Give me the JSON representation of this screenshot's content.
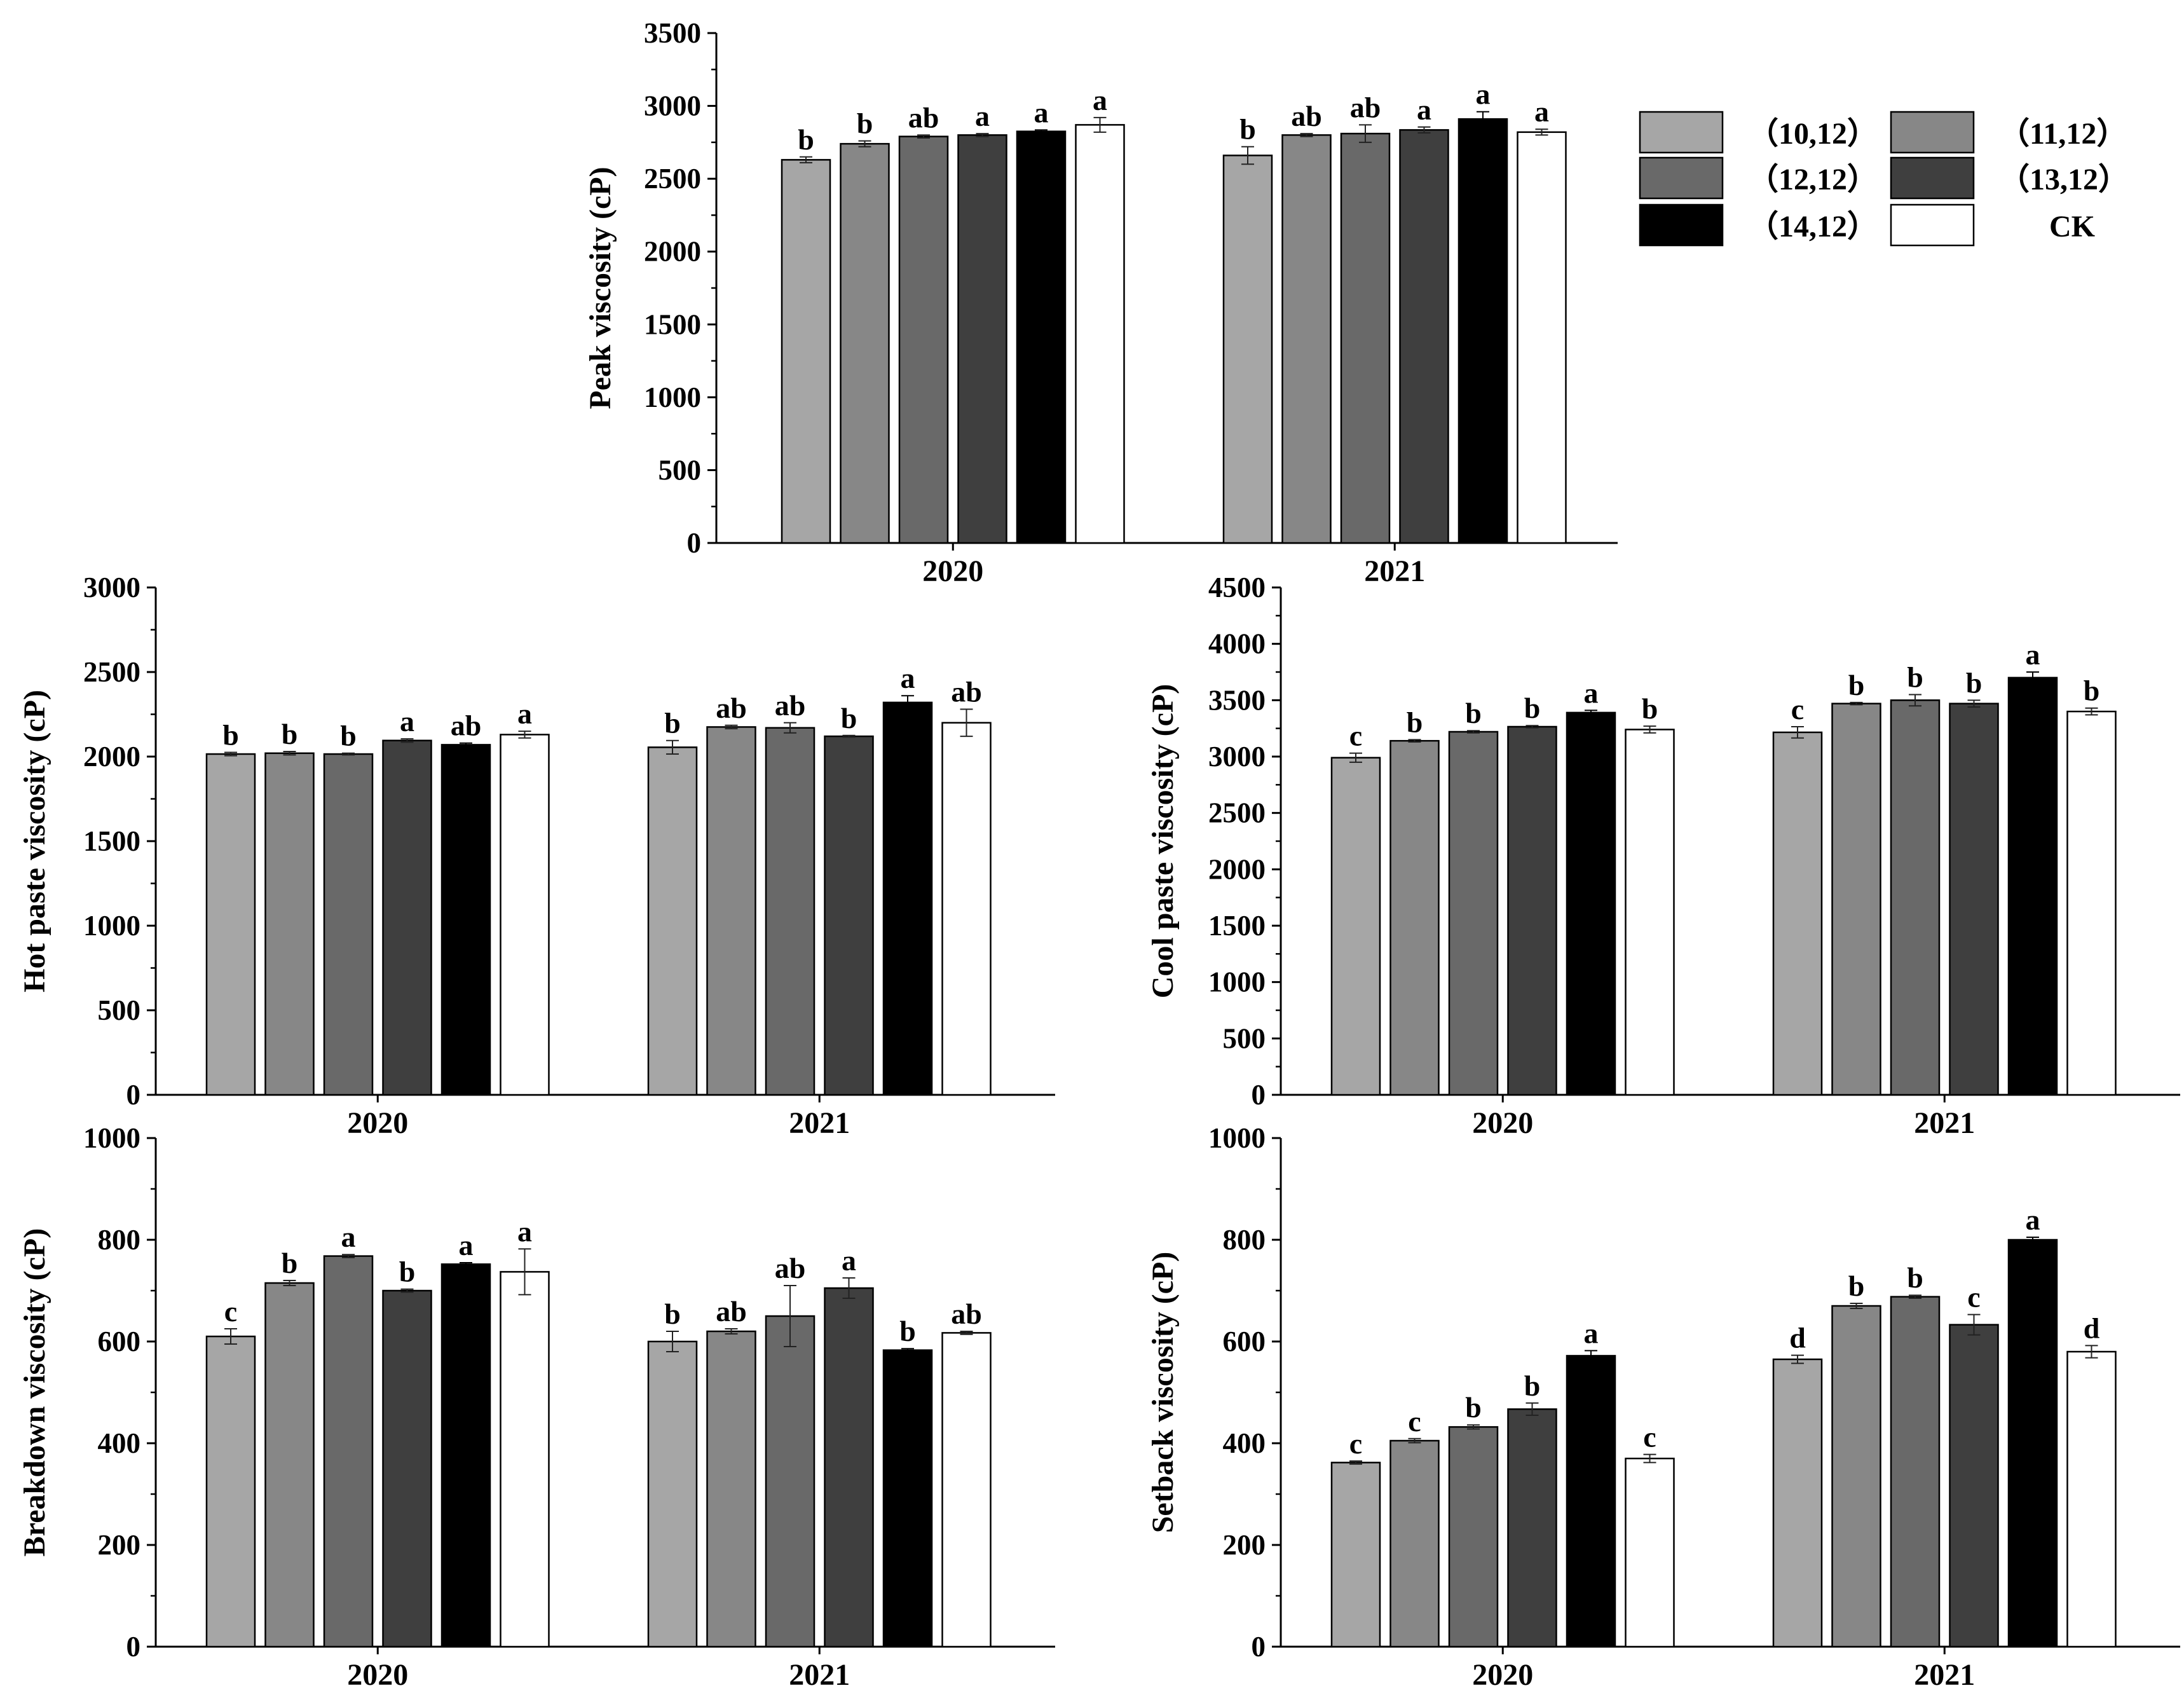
{
  "legend": {
    "items": [
      {
        "label": "（10,12）",
        "color": "#a6a6a6"
      },
      {
        "label": "（11,12）",
        "color": "#878787"
      },
      {
        "label": "（12,12）",
        "color": "#696969"
      },
      {
        "label": "（13,12）",
        "color": "#3f3f3f"
      },
      {
        "label": "（14,12）",
        "color": "#000000"
      },
      {
        "label": "CK",
        "color": "#ffffff"
      }
    ]
  },
  "chart_data": [
    {
      "id": "peak",
      "type": "bar",
      "ylabel": "Peak viscosity (cP)",
      "categories": [
        "2020",
        "2021"
      ],
      "ylim": [
        0,
        3500
      ],
      "yticks": [
        "0",
        "500",
        "1000",
        "1500",
        "2000",
        "2500",
        "3000",
        "3500"
      ],
      "series": [
        {
          "name": "（10,12）",
          "values": [
            2630,
            2660
          ],
          "errors": [
            20,
            60
          ],
          "letters": [
            "b",
            "b"
          ]
        },
        {
          "name": "（11,12）",
          "values": [
            2740,
            2800
          ],
          "errors": [
            20,
            10
          ],
          "letters": [
            "b",
            "ab"
          ]
        },
        {
          "name": "（12,12）",
          "values": [
            2790,
            2810
          ],
          "errors": [
            10,
            60
          ],
          "letters": [
            "ab",
            "ab"
          ]
        },
        {
          "name": "（13,12）",
          "values": [
            2800,
            2835
          ],
          "errors": [
            10,
            20
          ],
          "letters": [
            "a",
            "a"
          ]
        },
        {
          "name": "（14,12）",
          "values": [
            2825,
            2910
          ],
          "errors": [
            10,
            50
          ],
          "letters": [
            "a",
            "a"
          ]
        },
        {
          "name": "CK",
          "values": [
            2870,
            2820
          ],
          "errors": [
            50,
            20
          ],
          "letters": [
            "a",
            "a"
          ]
        }
      ]
    },
    {
      "id": "hot",
      "type": "bar",
      "ylabel": "Hot paste viscosity (cP)",
      "categories": [
        "2020",
        "2021"
      ],
      "ylim": [
        0,
        3000
      ],
      "yticks": [
        "0",
        "500",
        "1000",
        "1500",
        "2000",
        "2500",
        "3000"
      ],
      "series": [
        {
          "name": "（10,12）",
          "values": [
            2015,
            2055
          ],
          "errors": [
            10,
            40
          ],
          "letters": [
            "b",
            "b"
          ]
        },
        {
          "name": "（11,12）",
          "values": [
            2020,
            2175
          ],
          "errors": [
            10,
            10
          ],
          "letters": [
            "b",
            "ab"
          ]
        },
        {
          "name": "（12,12）",
          "values": [
            2015,
            2170
          ],
          "errors": [
            5,
            30
          ],
          "letters": [
            "b",
            "ab"
          ]
        },
        {
          "name": "（13,12）",
          "values": [
            2095,
            2120
          ],
          "errors": [
            10,
            5
          ],
          "letters": [
            "a",
            "b"
          ]
        },
        {
          "name": "（14,12）",
          "values": [
            2070,
            2320
          ],
          "errors": [
            10,
            40
          ],
          "letters": [
            "ab",
            "a"
          ]
        },
        {
          "name": "CK",
          "values": [
            2130,
            2200
          ],
          "errors": [
            20,
            80
          ],
          "letters": [
            "a",
            "ab"
          ]
        }
      ]
    },
    {
      "id": "cool",
      "type": "bar",
      "ylabel": "Cool paste viscosity (cP)",
      "categories": [
        "2020",
        "2021"
      ],
      "ylim": [
        0,
        4500
      ],
      "yticks": [
        "0",
        "500",
        "1000",
        "1500",
        "2000",
        "2500",
        "3000",
        "3500",
        "4000",
        "4500"
      ],
      "series": [
        {
          "name": "（10,12）",
          "values": [
            2990,
            3215
          ],
          "errors": [
            40,
            50
          ],
          "letters": [
            "c",
            "c"
          ]
        },
        {
          "name": "（11,12）",
          "values": [
            3140,
            3470
          ],
          "errors": [
            10,
            10
          ],
          "letters": [
            "b",
            "b"
          ]
        },
        {
          "name": "（12,12）",
          "values": [
            3220,
            3500
          ],
          "errors": [
            10,
            50
          ],
          "letters": [
            "b",
            "b"
          ]
        },
        {
          "name": "（13,12）",
          "values": [
            3265,
            3470
          ],
          "errors": [
            10,
            30
          ],
          "letters": [
            "b",
            "b"
          ]
        },
        {
          "name": "（14,12）",
          "values": [
            3390,
            3700
          ],
          "errors": [
            20,
            50
          ],
          "letters": [
            "a",
            "a"
          ]
        },
        {
          "name": "CK",
          "values": [
            3240,
            3400
          ],
          "errors": [
            30,
            30
          ],
          "letters": [
            "b",
            "b"
          ]
        }
      ]
    },
    {
      "id": "breakdown",
      "type": "bar",
      "ylabel": "Breakdown viscosity (cP)",
      "categories": [
        "2020",
        "2021"
      ],
      "ylim": [
        0,
        1000
      ],
      "yticks": [
        "0",
        "200",
        "400",
        "600",
        "800",
        "1000"
      ],
      "series": [
        {
          "name": "（10,12）",
          "values": [
            610,
            600
          ],
          "errors": [
            15,
            20
          ],
          "letters": [
            "c",
            "b"
          ]
        },
        {
          "name": "（11,12）",
          "values": [
            715,
            620
          ],
          "errors": [
            5,
            5
          ],
          "letters": [
            "b",
            "ab"
          ]
        },
        {
          "name": "（12,12）",
          "values": [
            768,
            650
          ],
          "errors": [
            3,
            60
          ],
          "letters": [
            "a",
            "ab"
          ]
        },
        {
          "name": "（13,12）",
          "values": [
            700,
            705
          ],
          "errors": [
            3,
            20
          ],
          "letters": [
            "b",
            "a"
          ]
        },
        {
          "name": "（14,12）",
          "values": [
            752,
            583
          ],
          "errors": [
            3,
            3
          ],
          "letters": [
            "a",
            "b"
          ]
        },
        {
          "name": "CK",
          "values": [
            737,
            617
          ],
          "errors": [
            45,
            3
          ],
          "letters": [
            "a",
            "ab"
          ]
        }
      ]
    },
    {
      "id": "setback",
      "type": "bar",
      "ylabel": "Setback viscosity (cP)",
      "categories": [
        "2020",
        "2021"
      ],
      "ylim": [
        0,
        1000
      ],
      "yticks": [
        "0",
        "200",
        "400",
        "600",
        "800",
        "1000"
      ],
      "series": [
        {
          "name": "（10,12）",
          "values": [
            362,
            565
          ],
          "errors": [
            3,
            8
          ],
          "letters": [
            "c",
            "d"
          ]
        },
        {
          "name": "（11,12）",
          "values": [
            405,
            670
          ],
          "errors": [
            4,
            5
          ],
          "letters": [
            "c",
            "b"
          ]
        },
        {
          "name": "（12,12）",
          "values": [
            432,
            688
          ],
          "errors": [
            4,
            3
          ],
          "letters": [
            "b",
            "b"
          ]
        },
        {
          "name": "（13,12）",
          "values": [
            467,
            633
          ],
          "errors": [
            12,
            20
          ],
          "letters": [
            "b",
            "c"
          ]
        },
        {
          "name": "（14,12）",
          "values": [
            572,
            800
          ],
          "errors": [
            10,
            5
          ],
          "letters": [
            "a",
            "a"
          ]
        },
        {
          "name": "CK",
          "values": [
            370,
            580
          ],
          "errors": [
            8,
            12
          ],
          "letters": [
            "c",
            "d"
          ]
        }
      ]
    }
  ]
}
